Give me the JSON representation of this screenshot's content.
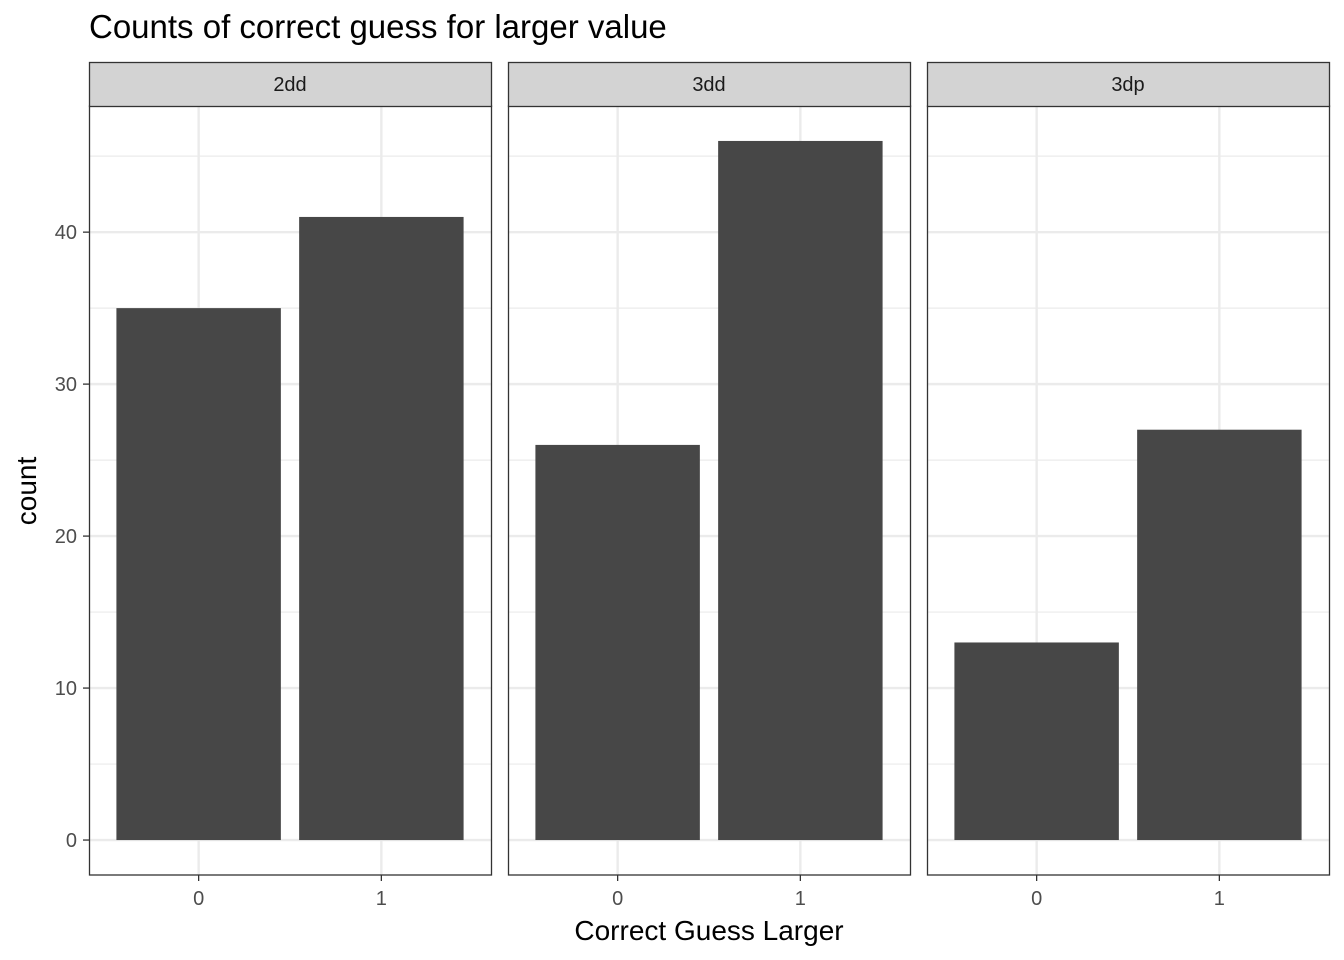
{
  "chart_data": {
    "type": "bar",
    "title": "Counts of correct guess for larger value",
    "xlabel": "Correct Guess Larger",
    "ylabel": "count",
    "ylim": [
      -2.3,
      48.3
    ],
    "yticks": [
      0,
      10,
      20,
      30,
      40
    ],
    "grid": true,
    "bar_color": "#474747",
    "strip_color": "#d3d3d3",
    "gridline_color": "#ebebeb",
    "categories": [
      "0",
      "1"
    ],
    "panels": [
      {
        "name": "2dd",
        "values": [
          35,
          41
        ]
      },
      {
        "name": "3dd",
        "values": [
          26,
          46
        ]
      },
      {
        "name": "3dp",
        "values": [
          13,
          27
        ]
      }
    ]
  }
}
